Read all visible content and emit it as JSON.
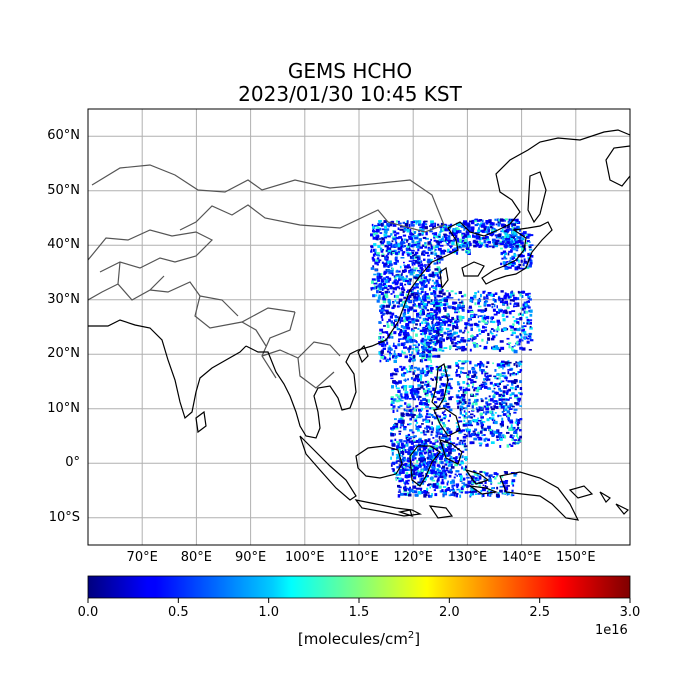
{
  "title": {
    "line1": "GEMS HCHO",
    "line2": "2023/01/30 10:45 KST"
  },
  "map": {
    "lon_range": [
      60,
      160
    ],
    "lat_range": [
      -15,
      65
    ],
    "lat_ticks": [
      {
        "value": 60,
        "label": "60°N"
      },
      {
        "value": 50,
        "label": "50°N"
      },
      {
        "value": 40,
        "label": "40°N"
      },
      {
        "value": 30,
        "label": "30°N"
      },
      {
        "value": 20,
        "label": "20°N"
      },
      {
        "value": 10,
        "label": "10°N"
      },
      {
        "value": 0,
        "label": "0°"
      },
      {
        "value": -10,
        "label": "10°S"
      }
    ],
    "lon_ticks": [
      {
        "value": 70,
        "label": "70°E"
      },
      {
        "value": 80,
        "label": "80°E"
      },
      {
        "value": 90,
        "label": "90°E"
      },
      {
        "value": 100,
        "label": "100°E"
      },
      {
        "value": 110,
        "label": "110°E"
      },
      {
        "value": 120,
        "label": "120°E"
      },
      {
        "value": 130,
        "label": "130°E"
      },
      {
        "value": 140,
        "label": "140°E"
      },
      {
        "value": 150,
        "label": "150°E"
      }
    ],
    "gridlines": true
  },
  "colorbar": {
    "colormap": "jet",
    "min": 0.0,
    "max": 3.0,
    "ticks": [
      "0.0",
      "0.5",
      "1.0",
      "1.5",
      "2.0",
      "2.5",
      "3.0"
    ],
    "label": "[molecules/cm",
    "label_sup": "2",
    "label_end": "]",
    "exponent": "1e16"
  },
  "colors": {
    "coastline": "#000000",
    "borders": "#555555",
    "grid": "#b0b0b0"
  }
}
